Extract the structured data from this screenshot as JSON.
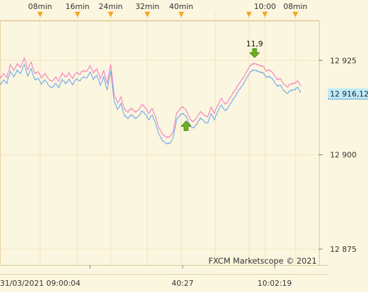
{
  "chart_data": {
    "type": "line",
    "title": "",
    "xlabel": "",
    "ylabel": "",
    "ylim": [
      12870.8,
      12935.5
    ],
    "x_tick_labels_top": [
      "08min",
      "16min",
      "24min",
      "32min",
      "40min",
      "10:00",
      "08min"
    ],
    "x_tick_labels_bottom": [
      "31/03/2021 09:00:04",
      "40:27",
      "10:02:19"
    ],
    "y_ticks": [
      {
        "value": 12925,
        "label": "12 925"
      },
      {
        "value": 12900,
        "label": "12 900"
      },
      {
        "value": 12875,
        "label": "12 875"
      }
    ],
    "current_price": {
      "value": 12916.12,
      "label": "12 916,12"
    },
    "series": [
      {
        "name": "",
        "color": "#F27FC0",
        "x": [
          0,
          5,
          10,
          15,
          20,
          25,
          30,
          35,
          40,
          45,
          50,
          55,
          60,
          65,
          70,
          75,
          80,
          85,
          90,
          95,
          100,
          105,
          110,
          115,
          120,
          125,
          130,
          135,
          140,
          145,
          150,
          155,
          160,
          165,
          170,
          175,
          180,
          185,
          190,
          195,
          200,
          205,
          210,
          215,
          220,
          225,
          230,
          235,
          240,
          245,
          250,
          255,
          260,
          265,
          270,
          275,
          280,
          285,
          290,
          295,
          300,
          305,
          310,
          315,
          320,
          325,
          330,
          335,
          340,
          345,
          350,
          355,
          360,
          365,
          370,
          375,
          380,
          385,
          390,
          395,
          400,
          405,
          410,
          415,
          420,
          425,
          430,
          435
        ],
        "values": [
          12920.2,
          12921.5,
          12920.6,
          12923.8,
          12922.4,
          12924.0,
          12923.2,
          12925.8,
          12922.5,
          12924.6,
          12921.5,
          12922.0,
          12920.5,
          12921.5,
          12920.2,
          12919.3,
          12920.6,
          12919.6,
          12921.6,
          12920.6,
          12921.6,
          12920.2,
          12921.9,
          12921.2,
          12922.4,
          12921.9,
          12923.6,
          12921.8,
          12922.7,
          12920.2,
          12922.2,
          12918.8,
          12924.1,
          12915.9,
          12913.8,
          12915.2,
          12912.0,
          12911.4,
          12912.3,
          12911.4,
          12911.7,
          12913.3,
          12912.6,
          12910.9,
          12912.3,
          12909.9,
          12907.0,
          12905.5,
          12904.7,
          12904.7,
          12905.9,
          12910.8,
          12912.3,
          12912.6,
          12911.6,
          12909.3,
          12908.8,
          12910.1,
          12911.4,
          12910.6,
          12909.9,
          12912.6,
          12911.1,
          12913.2,
          12915.0,
          12913.3,
          12914.2,
          12915.9,
          12917.1,
          12918.8,
          12919.9,
          12921.5,
          12923.2,
          12924.1,
          12924.1,
          12923.6,
          12923.5,
          12922.3,
          12922.4,
          12921.6,
          12919.9,
          12920.2,
          12918.8,
          12917.9,
          12918.8,
          12918.8,
          12919.6,
          12918.2
        ]
      },
      {
        "name": "",
        "color": "#6FA8EE",
        "x": [
          0,
          5,
          10,
          15,
          20,
          25,
          30,
          35,
          40,
          45,
          50,
          55,
          60,
          65,
          70,
          75,
          80,
          85,
          90,
          95,
          100,
          105,
          110,
          115,
          120,
          125,
          130,
          135,
          140,
          145,
          150,
          155,
          160,
          165,
          170,
          175,
          180,
          185,
          190,
          195,
          200,
          205,
          210,
          215,
          220,
          225,
          230,
          235,
          240,
          245,
          250,
          255,
          260,
          265,
          270,
          275,
          280,
          285,
          290,
          295,
          300,
          305,
          310,
          315,
          320,
          325,
          330,
          335,
          340,
          345,
          350,
          355,
          360,
          365,
          370,
          375,
          380,
          385,
          390,
          395,
          400,
          405,
          410,
          415,
          420,
          425,
          430,
          435
        ],
        "values": [
          12918.4,
          12919.8,
          12919.0,
          12922.1,
          12920.7,
          12922.3,
          12921.5,
          12924.1,
          12920.8,
          12922.9,
          12919.8,
          12920.3,
          12918.8,
          12919.8,
          12918.5,
          12917.6,
          12918.9,
          12917.9,
          12919.9,
          12918.9,
          12919.9,
          12918.5,
          12920.2,
          12919.5,
          12920.7,
          12920.2,
          12921.9,
          12920.1,
          12921.0,
          12918.5,
          12920.5,
          12917.1,
          12922.4,
          12914.2,
          12912.1,
          12913.5,
          12910.3,
          12909.7,
          12910.6,
          12909.7,
          12910.0,
          12911.6,
          12910.9,
          12909.2,
          12910.6,
          12908.2,
          12905.3,
          12903.8,
          12903.0,
          12903.0,
          12904.2,
          12909.1,
          12910.6,
          12910.9,
          12909.9,
          12907.6,
          12907.1,
          12908.4,
          12909.7,
          12908.9,
          12908.2,
          12910.9,
          12909.4,
          12911.5,
          12913.3,
          12911.6,
          12912.5,
          12914.2,
          12915.4,
          12917.1,
          12918.2,
          12919.8,
          12921.5,
          12922.4,
          12922.4,
          12921.9,
          12921.8,
          12920.6,
          12920.7,
          12919.9,
          12918.2,
          12918.5,
          12917.1,
          12916.2,
          12917.1,
          12917.1,
          12917.9,
          12916.5
        ]
      }
    ],
    "trade_markers": [
      {
        "type": "sell",
        "x": 368,
        "value": 12926.3,
        "label": "11,9",
        "color": "#6DB21C"
      },
      {
        "type": "buy",
        "x": 269,
        "value": 12907.7,
        "label": "",
        "color": "#6DB21C"
      }
    ],
    "grid": true,
    "watermark": "FXCM Marketscope © 2021",
    "colors": {
      "background": "#FBF6DF",
      "grid": "#F3E2BE",
      "marker_triangle": "#F5A623",
      "price_tag": "#BFEAF7"
    }
  }
}
